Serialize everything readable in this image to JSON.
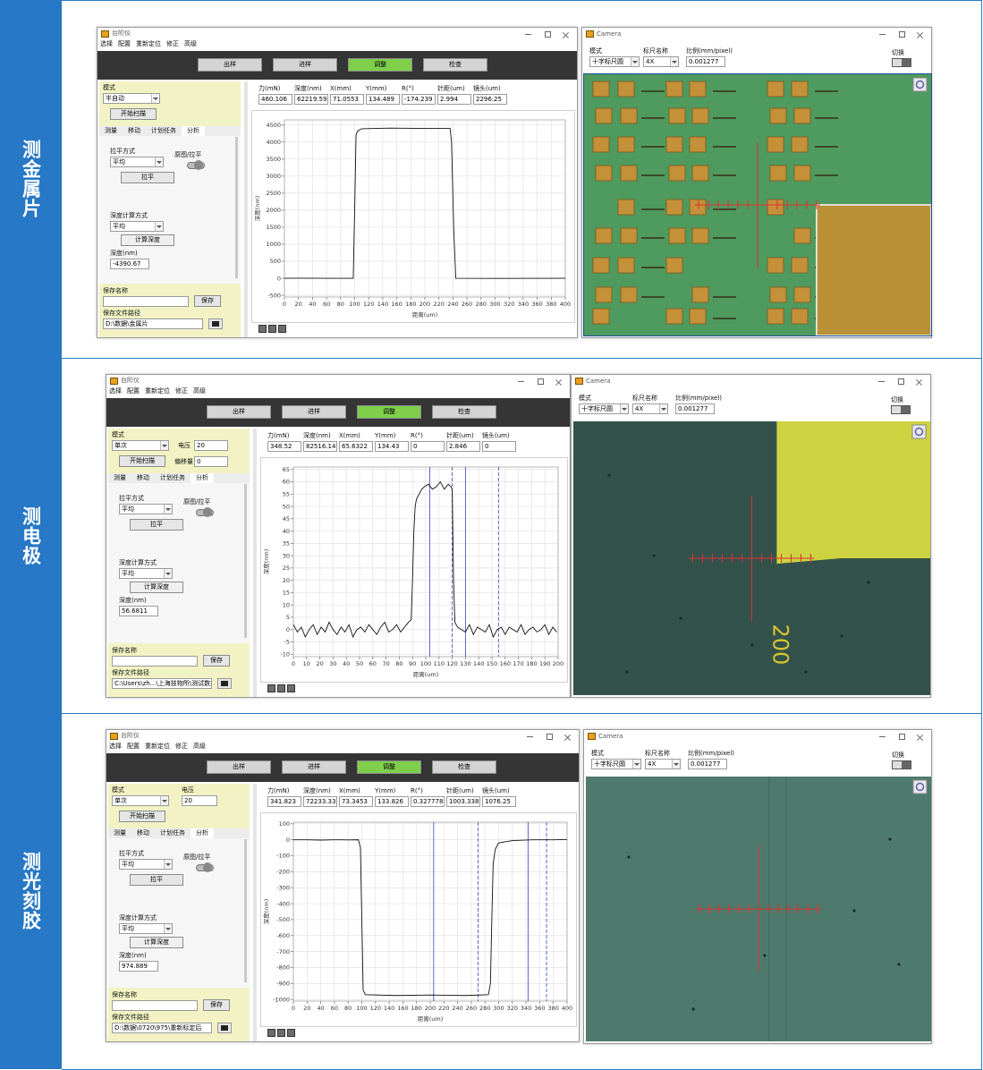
{
  "panels": [
    {
      "label": "测金属片",
      "app": {
        "title": "台阶仪",
        "menu": [
          "选择",
          "配置",
          "重新定位",
          "修正",
          "高级"
        ],
        "buttons": [
          "出样",
          "进样",
          "调整",
          "检查"
        ],
        "active_button": 2,
        "mode_label": "模式",
        "mode_value": "半自动",
        "scan_button": "开始扫描",
        "tabs": [
          "测量",
          "移动",
          "计划任务",
          "分析"
        ],
        "level_label": "拉平方式",
        "level_value": "平均",
        "switch_label": "原图/拉平",
        "level_button": "拉平",
        "depth_method_label": "深度计算方式",
        "depth_method_value": "平均",
        "depth_button": "计算深度",
        "depth_label": "深度(nm)",
        "depth_value": "-4390.67",
        "save_name_label": "保存名称",
        "save_button": "保存",
        "save_path_label": "保存文件路径",
        "save_path": "D:\\数据\\金属片",
        "readouts": [
          {
            "label": "力(mN)",
            "value": "460.106"
          },
          {
            "label": "深度(nm)",
            "value": "62219.59"
          },
          {
            "label": "X(mm)",
            "value": "71.0553"
          },
          {
            "label": "Y(mm)",
            "value": "134.489"
          },
          {
            "label": "R(°)",
            "value": "-174.239"
          },
          {
            "label": "针距(um)",
            "value": "2.994"
          },
          {
            "label": "镜头(um)",
            "value": "2296.25"
          }
        ]
      },
      "camera": {
        "title": "Camera",
        "mode_label": "模式",
        "mode_value": "十字标尺圆",
        "ruler_label": "标尺名称",
        "ruler_value": "4X",
        "scale_label": "比例(mm/pixel)",
        "scale_value": "0.001277",
        "switch_label": "切换"
      }
    },
    {
      "label": "测电极",
      "app": {
        "title": "台阶仪",
        "menu": [
          "选择",
          "配置",
          "重新定位",
          "修正",
          "高级"
        ],
        "buttons": [
          "出样",
          "进样",
          "调整",
          "检查"
        ],
        "active_button": 2,
        "mode_label": "模式",
        "mode_value": "单次",
        "scan_button": "开始扫描",
        "voltage_label": "电压",
        "voltage_value": "20",
        "offset_label": "偏移量",
        "offset_value": "0",
        "tabs": [
          "测量",
          "移动",
          "计划任务",
          "分析"
        ],
        "level_label": "拉平方式",
        "level_value": "平均",
        "switch_label": "原图/拉平",
        "level_button": "拉平",
        "depth_method_label": "深度计算方式",
        "depth_method_value": "平均",
        "depth_button": "计算深度",
        "depth_label": "深度(nm)",
        "depth_value": "56.6811",
        "save_name_label": "保存名称",
        "save_button": "保存",
        "save_path_label": "保存文件路径",
        "save_path": "C:\\Users\\zh...\\上海技物所\\测试数据",
        "readouts": [
          {
            "label": "力(mN)",
            "value": "348.52"
          },
          {
            "label": "深度(nm)",
            "value": "82516.14"
          },
          {
            "label": "X(mm)",
            "value": "65.6322"
          },
          {
            "label": "Y(mm)",
            "value": "134.43"
          },
          {
            "label": "R(°)",
            "value": "0"
          },
          {
            "label": "针距(um)",
            "value": "2.846"
          },
          {
            "label": "镜头(um)",
            "value": "0"
          }
        ]
      },
      "camera": {
        "title": "Camera",
        "mode_label": "模式",
        "mode_value": "十字标尺圆",
        "ruler_label": "标尺名称",
        "ruler_value": "4X",
        "scale_label": "比例(mm/pixel)",
        "scale_value": "0.001277",
        "switch_label": "切换",
        "image_text": "200"
      }
    },
    {
      "label": "测光刻胶",
      "app": {
        "title": "台阶仪",
        "menu": [
          "选择",
          "配置",
          "重新定位",
          "修正",
          "高级"
        ],
        "buttons": [
          "出样",
          "进样",
          "调整",
          "检查"
        ],
        "active_button": 2,
        "mode_label": "模式",
        "mode_value": "单次",
        "scan_button": "开始扫描",
        "voltage_label": "电压",
        "voltage_value": "20",
        "tabs": [
          "测量",
          "移动",
          "计划任务",
          "分析"
        ],
        "level_label": "拉平方式",
        "level_value": "平均",
        "switch_label": "原图/拉平",
        "level_button": "拉平",
        "depth_method_label": "深度计算方式",
        "depth_method_value": "平均",
        "depth_button": "计算深度",
        "depth_label": "深度(nm)",
        "depth_value": "974.889",
        "save_name_label": "保存名称",
        "save_button": "保存",
        "save_path_label": "保存文件路径",
        "save_path": "D:\\数据\\0720\\975\\重新标定后",
        "readouts": [
          {
            "label": "力(mN)",
            "value": "341.823"
          },
          {
            "label": "深度(nm)",
            "value": "72233.33"
          },
          {
            "label": "X(mm)",
            "value": "73.3453"
          },
          {
            "label": "Y(mm)",
            "value": "133.826"
          },
          {
            "label": "R(°)",
            "value": "0.327778"
          },
          {
            "label": "针距(um)",
            "value": "1003.338"
          },
          {
            "label": "镜头(um)",
            "value": "1076.25"
          }
        ]
      },
      "camera": {
        "title": "Camera",
        "mode_label": "模式",
        "mode_value": "十字标尺圆",
        "ruler_label": "标尺名称",
        "ruler_value": "4X",
        "scale_label": "比例(mm/pixel)",
        "scale_value": "0.001277",
        "switch_label": "切换"
      }
    }
  ],
  "chart_data": [
    {
      "type": "line",
      "x_label": "距离(um)",
      "y_label": "深度(nm)",
      "color": "#111111",
      "grid": true,
      "cursor_color": "#4a58c0",
      "x": [
        0,
        20,
        60,
        98,
        100,
        102,
        104,
        110,
        150,
        200,
        236,
        238,
        241,
        244,
        300,
        400
      ],
      "y": [
        0,
        2,
        0,
        1,
        2000,
        4200,
        4320,
        4390,
        4410,
        4400,
        4400,
        4000,
        1500,
        0,
        -3,
        0
      ],
      "xlim": [
        0,
        400
      ],
      "ylim": [
        -550,
        4650
      ],
      "xticks": [
        0,
        20,
        40,
        60,
        80,
        100,
        120,
        140,
        160,
        180,
        200,
        220,
        240,
        260,
        280,
        300,
        320,
        340,
        360,
        380,
        400
      ],
      "yticks": [
        -500,
        0,
        500,
        1000,
        1500,
        2000,
        2500,
        3000,
        3500,
        4000,
        4500
      ],
      "cursors": []
    },
    {
      "type": "line",
      "x_label": "距离(um)",
      "y_label": "深度(nm)",
      "color": "#111111",
      "grid": true,
      "cursor_color": "#4a58c0",
      "x": [
        0,
        3,
        6,
        9,
        12,
        15,
        18,
        21,
        24,
        27,
        30,
        33,
        36,
        39,
        42,
        45,
        48,
        51,
        54,
        57,
        60,
        63,
        66,
        69,
        72,
        75,
        78,
        81,
        84,
        87,
        89,
        90,
        91,
        92,
        93,
        95,
        97,
        99,
        102,
        105,
        108,
        111,
        114,
        117,
        119,
        120,
        121,
        122,
        124,
        127,
        130,
        133,
        136,
        139,
        142,
        145,
        148,
        151,
        154,
        157,
        160,
        163,
        166,
        169,
        172,
        175,
        178,
        181,
        184,
        187,
        190,
        193,
        196,
        199
      ],
      "y": [
        2,
        -1,
        1,
        -3,
        0,
        2,
        -2,
        1,
        -1,
        3,
        0,
        -2,
        1,
        -1,
        2,
        -3,
        0,
        1,
        -1,
        2,
        0,
        -2,
        1,
        3,
        -1,
        0,
        2,
        -1,
        1,
        3,
        4,
        20,
        40,
        50,
        53,
        55,
        57,
        58,
        59,
        57,
        58,
        60,
        57,
        59,
        58,
        57,
        20,
        3,
        1,
        0,
        -1,
        2,
        -2,
        1,
        0,
        -1,
        2,
        -3,
        0,
        1,
        -2,
        1,
        0,
        -1,
        2,
        -2,
        0,
        1,
        -1,
        0,
        2,
        -2,
        1,
        -1
      ],
      "xlim": [
        0,
        200
      ],
      "ylim": [
        -11,
        66
      ],
      "xticks": [
        0,
        10,
        20,
        30,
        40,
        50,
        60,
        70,
        80,
        90,
        100,
        110,
        120,
        130,
        140,
        150,
        160,
        170,
        180,
        190,
        200
      ],
      "yticks": [
        -10,
        -5,
        0,
        5,
        10,
        15,
        20,
        25,
        30,
        35,
        40,
        45,
        50,
        55,
        60,
        65
      ],
      "cursors": [
        {
          "x": 103,
          "style": "solid"
        },
        {
          "x": 120,
          "style": "dashed"
        },
        {
          "x": 130,
          "style": "solid"
        },
        {
          "x": 155,
          "style": "dashed"
        }
      ]
    },
    {
      "type": "line",
      "x_label": "距离(um)",
      "y_label": "深度(nm)",
      "color": "#111111",
      "grid": true,
      "cursor_color": "#4a58c0",
      "x": [
        0,
        20,
        40,
        60,
        80,
        95,
        98,
        100,
        102,
        105,
        150,
        200,
        250,
        285,
        288,
        290,
        292,
        295,
        300,
        320,
        350,
        380,
        400
      ],
      "y": [
        0,
        0,
        -2,
        0,
        -1,
        0,
        -50,
        -500,
        -940,
        -970,
        -975,
        -972,
        -975,
        -970,
        -900,
        -500,
        -150,
        -60,
        -20,
        -5,
        0,
        0,
        2
      ],
      "xlim": [
        0,
        400
      ],
      "ylim": [
        -1010,
        110
      ],
      "xticks": [
        0,
        20,
        40,
        60,
        80,
        100,
        120,
        140,
        160,
        180,
        200,
        220,
        240,
        260,
        280,
        300,
        320,
        340,
        360,
        380,
        400
      ],
      "yticks": [
        -1000,
        -900,
        -800,
        -700,
        -600,
        -500,
        -400,
        -300,
        -200,
        -100,
        0,
        100
      ],
      "cursors": [
        {
          "x": 205,
          "style": "solid"
        },
        {
          "x": 270,
          "style": "dashed"
        },
        {
          "x": 343,
          "style": "solid"
        },
        {
          "x": 370,
          "style": "dashed"
        }
      ]
    }
  ]
}
